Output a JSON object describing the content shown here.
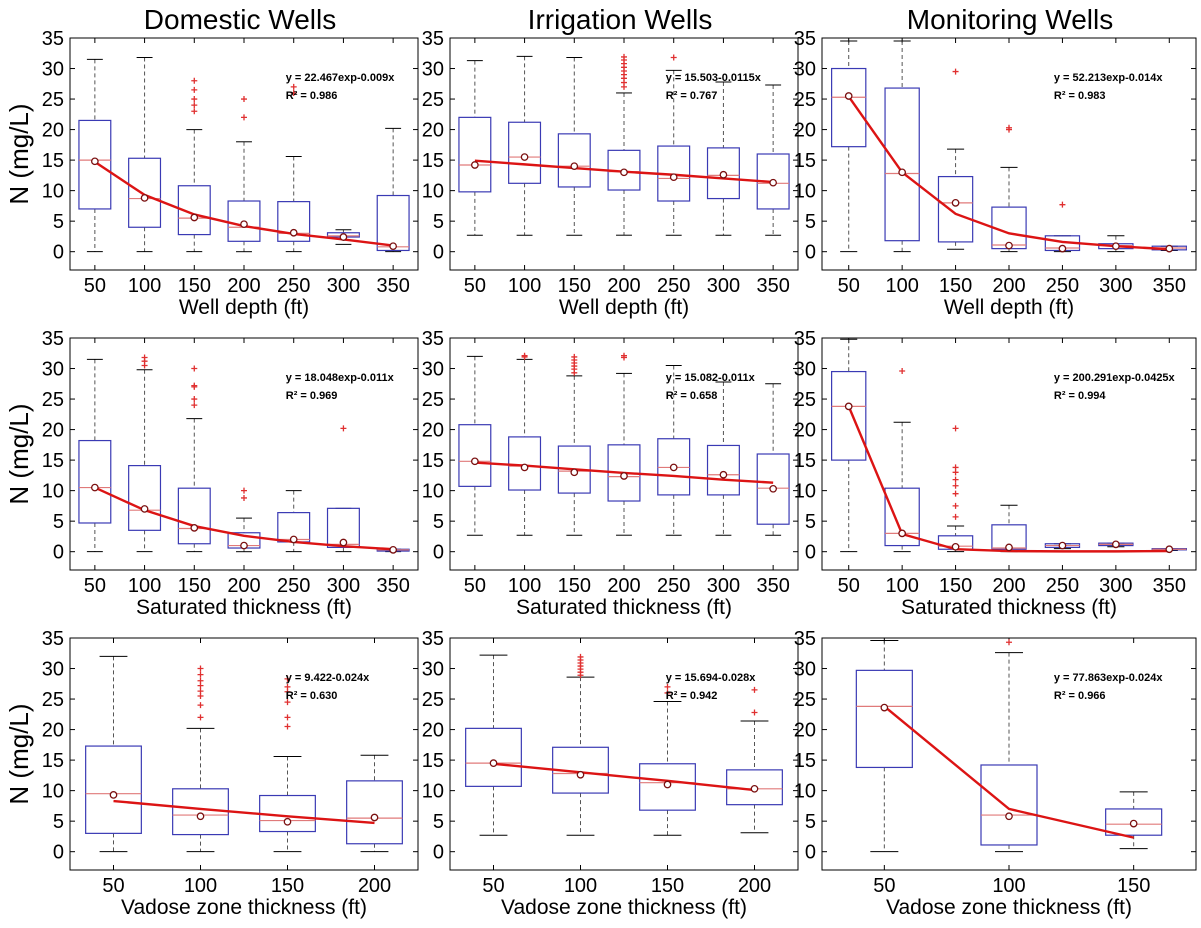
{
  "column_titles": [
    "Domestic Wells",
    "Irrigation Wells",
    "Monitoring Wells"
  ],
  "colors": {
    "box": "#3a3ab4",
    "median": "#e07a7a",
    "outlier": "#e03030",
    "fit_line": "#dc1414",
    "whisker": "#555555",
    "mean_marker": "#7a1010"
  },
  "chart_data": [
    {
      "type": "box",
      "panel": "domestic-depth",
      "xlabel": "Well depth (ft)",
      "ylabel": "N (mg/L)",
      "categories": [
        "50",
        "100",
        "150",
        "200",
        "250",
        "300",
        "350"
      ],
      "ylim": [
        -3,
        35
      ],
      "yticks": [
        "0",
        "5",
        "10",
        "15",
        "20",
        "25",
        "30",
        "35"
      ],
      "equation": "y = 22.467exp-0.009x",
      "r2": "R² = 0.986",
      "boxes": [
        {
          "lo": 0,
          "q1": 7,
          "med": 15,
          "q3": 21.5,
          "hi": 31.5,
          "mean": 14.8,
          "out": []
        },
        {
          "lo": 0,
          "q1": 4,
          "med": 8.7,
          "q3": 15.3,
          "hi": 31.8,
          "mean": 8.8,
          "out": []
        },
        {
          "lo": 0,
          "q1": 2.8,
          "med": 5.5,
          "q3": 10.8,
          "hi": 20,
          "mean": 5.6,
          "out": [
            23,
            24,
            25,
            26.5,
            28
          ]
        },
        {
          "lo": 0,
          "q1": 1.7,
          "med": 4,
          "q3": 8.3,
          "hi": 18,
          "mean": 4.5,
          "out": [
            22,
            25
          ]
        },
        {
          "lo": 0,
          "q1": 1.7,
          "med": 3,
          "q3": 8.2,
          "hi": 15.6,
          "mean": 3.1,
          "out": [
            26,
            27
          ]
        },
        {
          "lo": 1.2,
          "q1": 2.4,
          "med": 2.6,
          "q3": 3.1,
          "hi": 3.6,
          "mean": 2.4,
          "out": []
        },
        {
          "lo": 0,
          "q1": 0.2,
          "med": 0.8,
          "q3": 9.2,
          "hi": 20.2,
          "mean": 0.9,
          "out": []
        }
      ],
      "fit": [
        14.7,
        9.3,
        6.1,
        4.2,
        2.9,
        2.0,
        1.0
      ]
    },
    {
      "type": "box",
      "panel": "irrigation-depth",
      "xlabel": "Well depth (ft)",
      "ylabel": "",
      "categories": [
        "50",
        "100",
        "150",
        "200",
        "250",
        "300",
        "350"
      ],
      "ylim": [
        -3,
        35
      ],
      "yticks": [
        "0",
        "5",
        "10",
        "15",
        "20",
        "25",
        "30",
        "35"
      ],
      "equation": "y = 15.503-0.0115x",
      "r2": "R² = 0.767",
      "boxes": [
        {
          "lo": 2.7,
          "q1": 9.8,
          "med": 14.2,
          "q3": 22,
          "hi": 31.3,
          "mean": 14.2,
          "out": []
        },
        {
          "lo": 2.7,
          "q1": 11.2,
          "med": 15.5,
          "q3": 21.2,
          "hi": 32,
          "mean": 15.5,
          "out": []
        },
        {
          "lo": 2.7,
          "q1": 10.6,
          "med": 14,
          "q3": 19.3,
          "hi": 31.8,
          "mean": 14,
          "out": []
        },
        {
          "lo": 2.7,
          "q1": 10.1,
          "med": 13.1,
          "q3": 16.6,
          "hi": 26,
          "mean": 13,
          "out": [
            27,
            27.7,
            28.4,
            29,
            29.6,
            30.2,
            30.8,
            31.4,
            31.9
          ]
        },
        {
          "lo": 2.7,
          "q1": 8.3,
          "med": 12,
          "q3": 17.3,
          "hi": 29.7,
          "mean": 12.2,
          "out": [
            31.8
          ]
        },
        {
          "lo": 2.7,
          "q1": 8.7,
          "med": 12.5,
          "q3": 17,
          "hi": 27.8,
          "mean": 12.6,
          "out": []
        },
        {
          "lo": 2.7,
          "q1": 7,
          "med": 11.2,
          "q3": 16,
          "hi": 27.3,
          "mean": 11.3,
          "out": []
        }
      ],
      "fit": [
        14.9,
        14.3,
        13.7,
        13.1,
        12.6,
        12.0,
        11.4
      ]
    },
    {
      "type": "box",
      "panel": "monitoring-depth",
      "xlabel": "Well depth (ft)",
      "ylabel": "",
      "categories": [
        "50",
        "100",
        "150",
        "200",
        "250",
        "300",
        "350"
      ],
      "ylim": [
        -3,
        35
      ],
      "yticks": [
        "0",
        "5",
        "10",
        "15",
        "20",
        "25",
        "30",
        "35"
      ],
      "equation": "y = 52.213exp-0.014x",
      "r2": "R² = 0.983",
      "boxes": [
        {
          "lo": 0,
          "q1": 17.2,
          "med": 25.3,
          "q3": 30,
          "hi": 34.5,
          "mean": 25.5,
          "out": []
        },
        {
          "lo": 0,
          "q1": 1.8,
          "med": 12.8,
          "q3": 26.8,
          "hi": 34.5,
          "mean": 13,
          "out": []
        },
        {
          "lo": 0.4,
          "q1": 1.6,
          "med": 8,
          "q3": 12.3,
          "hi": 16.8,
          "mean": 8,
          "out": [
            29.5
          ]
        },
        {
          "lo": 0,
          "q1": 0.5,
          "med": 1.1,
          "q3": 7.3,
          "hi": 13.8,
          "mean": 1,
          "out": [
            20,
            20.3
          ]
        },
        {
          "lo": 0,
          "q1": 0.2,
          "med": 0.6,
          "q3": 2.6,
          "hi": 2.6,
          "mean": 0.5,
          "out": [
            7.7
          ]
        },
        {
          "lo": 0,
          "q1": 0.5,
          "med": 1,
          "q3": 1.3,
          "hi": 2.6,
          "mean": 0.9,
          "out": []
        },
        {
          "lo": 0.2,
          "q1": 0.3,
          "med": 0.6,
          "q3": 0.9,
          "hi": 0.9,
          "mean": 0.5,
          "out": []
        }
      ],
      "fit": [
        25.4,
        13.0,
        6.2,
        3.0,
        1.6,
        0.9,
        0.4
      ]
    },
    {
      "type": "box",
      "panel": "domestic-saturated",
      "xlabel": "Saturated thickness (ft)",
      "ylabel": "N (mg/L)",
      "categories": [
        "50",
        "100",
        "150",
        "200",
        "250",
        "300",
        "350"
      ],
      "ylim": [
        -3,
        35
      ],
      "yticks": [
        "0",
        "5",
        "10",
        "15",
        "20",
        "25",
        "30",
        "35"
      ],
      "equation": "y = 18.048exp-0.011x",
      "r2": "R² = 0.969",
      "boxes": [
        {
          "lo": 0,
          "q1": 4.7,
          "med": 10.5,
          "q3": 18.2,
          "hi": 31.5,
          "mean": 10.5,
          "out": []
        },
        {
          "lo": 0,
          "q1": 3.5,
          "med": 6.8,
          "q3": 14.1,
          "hi": 29.8,
          "mean": 7,
          "out": [
            30.5,
            31.2,
            31.8
          ]
        },
        {
          "lo": 0,
          "q1": 1.3,
          "med": 3.8,
          "q3": 10.4,
          "hi": 21.8,
          "mean": 3.9,
          "out": [
            24,
            25,
            27,
            27.2,
            30
          ]
        },
        {
          "lo": 0,
          "q1": 0.6,
          "med": 1,
          "q3": 3.1,
          "hi": 5.5,
          "mean": 1,
          "out": [
            8.8,
            10
          ]
        },
        {
          "lo": 0,
          "q1": 1.6,
          "med": 2,
          "q3": 6.4,
          "hi": 10,
          "mean": 2,
          "out": []
        },
        {
          "lo": 0,
          "q1": 0.7,
          "med": 1.2,
          "q3": 7.1,
          "hi": 7.1,
          "mean": 1.5,
          "out": [
            20.2
          ]
        },
        {
          "lo": 0,
          "q1": 0.1,
          "med": 0.3,
          "q3": 0.4,
          "hi": 0.4,
          "mean": 0.3,
          "out": []
        }
      ],
      "fit": [
        10.5,
        6.8,
        4.2,
        2.6,
        1.6,
        0.9,
        0.4
      ]
    },
    {
      "type": "box",
      "panel": "irrigation-saturated",
      "xlabel": "Saturated thickness (ft)",
      "ylabel": "",
      "categories": [
        "50",
        "100",
        "150",
        "200",
        "250",
        "300",
        "350"
      ],
      "ylim": [
        -3,
        35
      ],
      "yticks": [
        "0",
        "5",
        "10",
        "15",
        "20",
        "25",
        "30",
        "35"
      ],
      "equation": "y = 15.082-0.011x",
      "r2": "R² = 0.658",
      "boxes": [
        {
          "lo": 2.7,
          "q1": 10.7,
          "med": 14.8,
          "q3": 20.8,
          "hi": 32,
          "mean": 14.8,
          "out": []
        },
        {
          "lo": 2.7,
          "q1": 10.1,
          "med": 14,
          "q3": 18.8,
          "hi": 31.5,
          "mean": 13.8,
          "out": [
            31.9,
            32.1
          ]
        },
        {
          "lo": 2.7,
          "q1": 9.6,
          "med": 13.2,
          "q3": 17.3,
          "hi": 28.8,
          "mean": 13,
          "out": [
            29.3,
            29.9,
            30.4,
            30.9,
            31.4,
            31.9
          ]
        },
        {
          "lo": 2.7,
          "q1": 8.3,
          "med": 12.3,
          "q3": 17.5,
          "hi": 29.2,
          "mean": 12.4,
          "out": [
            31.8,
            32.1
          ]
        },
        {
          "lo": 2.7,
          "q1": 9.3,
          "med": 13.8,
          "q3": 18.5,
          "hi": 30.5,
          "mean": 13.8,
          "out": []
        },
        {
          "lo": 2.7,
          "q1": 9.3,
          "med": 12.6,
          "q3": 17.4,
          "hi": 27.8,
          "mean": 12.6,
          "out": []
        },
        {
          "lo": 2.7,
          "q1": 4.5,
          "med": 10.4,
          "q3": 16,
          "hi": 27.5,
          "mean": 10.3,
          "out": []
        }
      ],
      "fit": [
        14.6,
        14.1,
        13.5,
        12.9,
        12.4,
        11.8,
        11.3
      ]
    },
    {
      "type": "box",
      "panel": "monitoring-saturated",
      "xlabel": "Saturated thickness (ft)",
      "ylabel": "",
      "categories": [
        "50",
        "100",
        "150",
        "200",
        "250",
        "300",
        "350"
      ],
      "ylim": [
        -3,
        35
      ],
      "yticks": [
        "0",
        "5",
        "10",
        "15",
        "20",
        "25",
        "30",
        "35"
      ],
      "equation": "y = 200.291exp-0.0425x",
      "r2": "R² = 0.994",
      "boxes": [
        {
          "lo": 0,
          "q1": 15,
          "med": 23.8,
          "q3": 29.5,
          "hi": 34.8,
          "mean": 23.8,
          "out": []
        },
        {
          "lo": 0,
          "q1": 1,
          "med": 3,
          "q3": 10.4,
          "hi": 21.2,
          "mean": 3,
          "out": [
            29.6
          ]
        },
        {
          "lo": 0,
          "q1": 0.4,
          "med": 0.9,
          "q3": 2.6,
          "hi": 4.2,
          "mean": 0.8,
          "out": [
            5.7,
            7.5,
            9.5,
            10.8,
            11.8,
            13,
            13.8,
            20.2
          ]
        },
        {
          "lo": 0,
          "q1": 0.4,
          "med": 0.6,
          "q3": 4.4,
          "hi": 7.6,
          "mean": 0.7,
          "out": []
        },
        {
          "lo": 0.5,
          "q1": 0.7,
          "med": 1,
          "q3": 1.3,
          "hi": 1.3,
          "mean": 1,
          "out": []
        },
        {
          "lo": 0.8,
          "q1": 1,
          "med": 1.2,
          "q3": 1.4,
          "hi": 1.4,
          "mean": 1.2,
          "out": []
        },
        {
          "lo": 0.2,
          "q1": 0.3,
          "med": 0.4,
          "q3": 0.5,
          "hi": 0.5,
          "mean": 0.4,
          "out": []
        }
      ],
      "fit": [
        23.8,
        2.9,
        0.4,
        0.1,
        0.05,
        0.05,
        0.1
      ]
    },
    {
      "type": "box",
      "panel": "domestic-vadose",
      "xlabel": "Vadose zone thickness (ft)",
      "ylabel": "N (mg/L)",
      "categories": [
        "50",
        "100",
        "150",
        "200"
      ],
      "ylim": [
        -3,
        35
      ],
      "yticks": [
        "0",
        "5",
        "10",
        "15",
        "20",
        "25",
        "30",
        "35"
      ],
      "equation": "y = 9.422-0.024x",
      "r2": "R² = 0.630",
      "boxes": [
        {
          "lo": 0,
          "q1": 3,
          "med": 9.5,
          "q3": 17.3,
          "hi": 32,
          "mean": 9.3,
          "out": []
        },
        {
          "lo": 0,
          "q1": 2.8,
          "med": 6,
          "q3": 10.3,
          "hi": 20.2,
          "mean": 5.8,
          "out": [
            22,
            24,
            25.5,
            26.3,
            27.2,
            28,
            29,
            30
          ]
        },
        {
          "lo": 0,
          "q1": 3.3,
          "med": 5.1,
          "q3": 9.2,
          "hi": 15.6,
          "mean": 4.9,
          "out": [
            20.5,
            22,
            24.5,
            26.2,
            27,
            28.3
          ]
        },
        {
          "lo": 0,
          "q1": 1.3,
          "med": 5.5,
          "q3": 11.6,
          "hi": 15.8,
          "mean": 5.6,
          "out": []
        }
      ],
      "fit": [
        8.3,
        7.0,
        5.8,
        4.7
      ]
    },
    {
      "type": "box",
      "panel": "irrigation-vadose",
      "xlabel": "Vadose zone thickness (ft)",
      "ylabel": "",
      "categories": [
        "50",
        "100",
        "150",
        "200"
      ],
      "ylim": [
        -3,
        35
      ],
      "yticks": [
        "0",
        "5",
        "10",
        "15",
        "20",
        "25",
        "30",
        "35"
      ],
      "equation": "y = 15.694-0.028x",
      "r2": "R² = 0.942",
      "boxes": [
        {
          "lo": 2.7,
          "q1": 10.7,
          "med": 14.5,
          "q3": 20.2,
          "hi": 32.2,
          "mean": 14.5,
          "out": []
        },
        {
          "lo": 2.7,
          "q1": 9.6,
          "med": 12.8,
          "q3": 17.1,
          "hi": 28.6,
          "mean": 12.6,
          "out": [
            28.9,
            29.4,
            29.9,
            30.4,
            30.9,
            31.4,
            31.9
          ]
        },
        {
          "lo": 2.7,
          "q1": 6.8,
          "med": 11.3,
          "q3": 14.4,
          "hi": 24.6,
          "mean": 11,
          "out": [
            26,
            27
          ]
        },
        {
          "lo": 3.1,
          "q1": 7.7,
          "med": 10.3,
          "q3": 13.4,
          "hi": 21.4,
          "mean": 10.3,
          "out": [
            22.8,
            26.5
          ]
        }
      ],
      "fit": [
        14.4,
        13.0,
        11.6,
        10.1
      ]
    },
    {
      "type": "box",
      "panel": "monitoring-vadose",
      "xlabel": "Vadose zone thickness (ft)",
      "ylabel": "",
      "categories": [
        "50",
        "100",
        "150"
      ],
      "ylim": [
        -3,
        35
      ],
      "yticks": [
        "0",
        "5",
        "10",
        "15",
        "20",
        "25",
        "30",
        "35"
      ],
      "equation": "y = 77.863exp-0.024x",
      "r2": "R² = 0.966",
      "boxes": [
        {
          "lo": 0,
          "q1": 13.8,
          "med": 23.8,
          "q3": 29.7,
          "hi": 34.6,
          "mean": 23.6,
          "out": []
        },
        {
          "lo": 0,
          "q1": 1.1,
          "med": 6,
          "q3": 14.2,
          "hi": 32.6,
          "mean": 5.8,
          "out": [
            34.3
          ]
        },
        {
          "lo": 0.5,
          "q1": 2.7,
          "med": 4.5,
          "q3": 7,
          "hi": 9.8,
          "mean": 4.6,
          "out": []
        }
      ],
      "fit": [
        23.8,
        7.0,
        2.3
      ]
    }
  ]
}
